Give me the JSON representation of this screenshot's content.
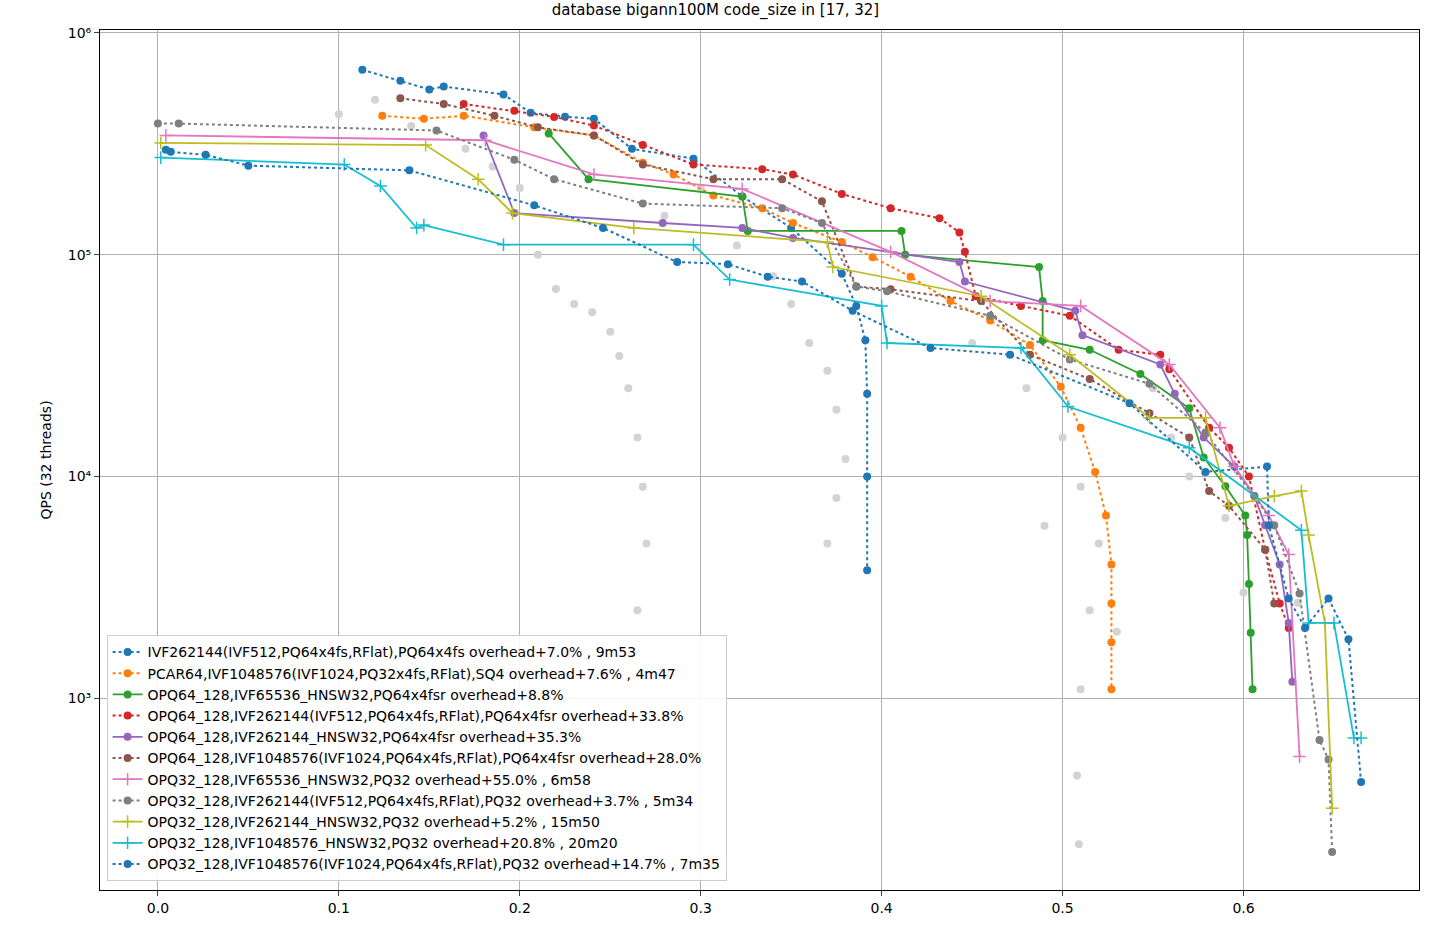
{
  "chart_data": {
    "type": "line",
    "title": "database bigann100M code_size in [17, 32]",
    "y_label": "QPS (32 threads)",
    "log": "y",
    "grid": true,
    "legend": "lower left",
    "xlim": [
      -0.032,
      0.697
    ],
    "ylim": [
      137,
      1030000
    ],
    "xticks": [
      {
        "value": 0,
        "label": "0.0"
      },
      0.1,
      0.2,
      0.3,
      0.4,
      0.5,
      0.6
    ],
    "yticks": [
      {
        "value": 1000,
        "label": "10³"
      },
      {
        "value": 10000,
        "label": "10⁴"
      },
      {
        "value": 100000,
        "label": "10⁵"
      },
      {
        "value": 1000000,
        "label": "10⁶"
      }
    ],
    "series": [
      {
        "color": "#d3d3d3",
        "marker": "circle",
        "line_style": "none",
        "x": [
          0.2,
          0.21,
          0.22,
          0.23,
          0.24,
          0.25,
          0.255,
          0.26,
          0.265,
          0.268,
          0.27,
          0.265,
          0.32,
          0.34,
          0.35,
          0.36,
          0.37,
          0.375,
          0.38,
          0.375,
          0.37,
          0.45,
          0.48,
          0.5,
          0.51,
          0.52,
          0.515,
          0.51,
          0.508,
          0.509,
          0.55,
          0.56,
          0.57,
          0.59,
          0.6,
          0.63,
          0.1,
          0.12,
          0.14,
          0.17,
          0.185,
          0.3,
          0.28,
          0.53,
          0.49
        ],
        "values": [
          200000,
          100000,
          70000,
          60000,
          55000,
          45000,
          35000,
          25000,
          15000,
          9000,
          5000,
          2500,
          110000,
          80000,
          60000,
          40000,
          30000,
          20000,
          12000,
          8000,
          5000,
          40000,
          25000,
          15000,
          9000,
          5000,
          2500,
          1100,
          450,
          220,
          25000,
          15000,
          10000,
          6500,
          3000,
          2700,
          430000,
          500000,
          380000,
          300000,
          250000,
          200000,
          150000,
          2000,
          6000
        ]
      },
      {
        "name": "IVF262144(IVF512,PQ64x4fs,RFlat),PQ64x4fs overhead+7.0% , 9m53",
        "color": "#1f77b4",
        "marker": "circle",
        "line_style": "dotted",
        "x": [
          0.113,
          0.134,
          0.15,
          0.158,
          0.191,
          0.206,
          0.225,
          0.241,
          0.262,
          0.296,
          0.323,
          0.35,
          0.378,
          0.386,
          0.391,
          0.392,
          0.392,
          0.392
        ],
        "values": [
          681000,
          609000,
          556000,
          573000,
          528000,
          436000,
          419000,
          410000,
          300000,
          271000,
          183000,
          132000,
          82000,
          58800,
          41200,
          23600,
          10000,
          3780
        ]
      },
      {
        "name": "PCAR64,IVF1048576(IVF1024,PQ32x4fs,RFlat),SQ4 overhead+7.6% , 4m47",
        "color": "#ff7f0e",
        "marker": "circle",
        "line_style": "dotted",
        "x": [
          0.124,
          0.147,
          0.169,
          0.208,
          0.241,
          0.268,
          0.285,
          0.307,
          0.334,
          0.351,
          0.378,
          0.395,
          0.416,
          0.438,
          0.46,
          0.482,
          0.499,
          0.51,
          0.518,
          0.524,
          0.527,
          0.527,
          0.527,
          0.527
        ],
        "values": [
          423000,
          410000,
          423000,
          375000,
          345000,
          260000,
          230000,
          185000,
          162000,
          139000,
          114000,
          97500,
          79600,
          61800,
          50500,
          39200,
          25400,
          16600,
          10500,
          6670,
          4020,
          2680,
          1790,
          1100
        ]
      },
      {
        "name": "OPQ64_128,IVF65536_HNSW32,PQ64x4fsr overhead+8.8%",
        "color": "#2ca02c",
        "marker": "circle",
        "line_style": "solid",
        "x": [
          0.216,
          0.238,
          0.323,
          0.326,
          0.411,
          0.413,
          0.487,
          0.489,
          0.489,
          0.515,
          0.543,
          0.57,
          0.578,
          0.59,
          0.601,
          0.602,
          0.603,
          0.604,
          0.605
        ],
        "values": [
          352000,
          219000,
          183000,
          128000,
          128000,
          100000,
          88000,
          61800,
          41200,
          37300,
          29000,
          20300,
          12200,
          9040,
          6670,
          5450,
          3280,
          1980,
          1100
        ]
      },
      {
        "name": "OPQ64_128,IVF262144(IVF512,PQ64x4fs,RFlat),PQ64x4fsr overhead+33.8%",
        "color": "#d62728",
        "marker": "circle",
        "line_style": "dotted",
        "x": [
          0.169,
          0.197,
          0.219,
          0.241,
          0.268,
          0.296,
          0.334,
          0.351,
          0.378,
          0.405,
          0.432,
          0.443,
          0.446,
          0.452,
          0.477,
          0.504,
          0.531,
          0.554,
          0.559,
          0.581,
          0.592,
          0.603,
          0.612,
          0.62,
          0.625
        ],
        "values": [
          478000,
          445000,
          418000,
          382000,
          312000,
          255000,
          243000,
          230000,
          188000,
          162000,
          146000,
          126000,
          103000,
          65000,
          58800,
          53100,
          37300,
          35400,
          30500,
          16600,
          13500,
          10000,
          4680,
          2680,
          2080
        ]
      },
      {
        "name": "OPQ64_128,IVF262144_HNSW32,PQ64x4fsr overhead+35.3%",
        "color": "#9467bd",
        "marker": "circle",
        "line_style": "solid",
        "x": [
          0.18,
          0.197,
          0.279,
          0.323,
          0.351,
          0.443,
          0.446,
          0.507,
          0.511,
          0.554,
          0.562,
          0.578,
          0.595,
          0.606,
          0.612,
          0.62,
          0.625,
          0.627
        ],
        "values": [
          345000,
          154000,
          139000,
          132000,
          119000,
          92700,
          75700,
          55900,
          43400,
          32000,
          23600,
          15000,
          11100,
          8170,
          6030,
          4020,
          2190,
          1190
        ]
      },
      {
        "name": "OPQ64_128,IVF1048576(IVF1024,PQ64x4fs,RFlat),PQ64x4fsr overhead+28.0%",
        "color": "#8c564b",
        "marker": "circle",
        "line_style": "dotted",
        "x": [
          0.134,
          0.158,
          0.186,
          0.21,
          0.241,
          0.268,
          0.307,
          0.345,
          0.367,
          0.386,
          0.405,
          0.455,
          0.482,
          0.515,
          0.548,
          0.57,
          0.581,
          0.592,
          0.612,
          0.617
        ],
        "values": [
          507000,
          478000,
          423000,
          375000,
          345000,
          255000,
          219000,
          219000,
          174000,
          71900,
          69800,
          61800,
          35400,
          27500,
          19300,
          15000,
          8600,
          7380,
          4680,
          2680
        ]
      },
      {
        "name": "OPQ32_128,IVF65536_HNSW32,PQ32 overhead+55.0% , 6m58",
        "color": "#e377c2",
        "marker": "plus",
        "line_style": "solid",
        "x": [
          0.0044,
          0.181,
          0.241,
          0.323,
          0.405,
          0.46,
          0.51,
          0.559,
          0.587,
          0.595,
          0.614,
          0.625,
          0.631
        ],
        "values": [
          345000,
          328000,
          230000,
          198000,
          103000,
          61800,
          58800,
          32000,
          16600,
          11100,
          6670,
          4450,
          547
        ]
      },
      {
        "name": "OPQ32_128,IVF262144(IVF512,PQ64x4fs,RFlat),PQ32 overhead+3.7% , 5m34",
        "color": "#7f7f7f",
        "marker": "circle",
        "line_style": "dotted",
        "x": [
          0.0,
          0.0115,
          0.154,
          0.197,
          0.219,
          0.268,
          0.345,
          0.367,
          0.386,
          0.403,
          0.46,
          0.504,
          0.548,
          0.579,
          0.606,
          0.617,
          0.631,
          0.642,
          0.647,
          0.649
        ],
        "values": [
          390000,
          390000,
          363000,
          268000,
          219000,
          170000,
          162000,
          139000,
          71900,
          68400,
          53100,
          33700,
          26200,
          15800,
          8170,
          6030,
          2970,
          650,
          531,
          203
        ]
      },
      {
        "name": "OPQ32_128,IVF262144_HNSW32,PQ32 overhead+5.2% , 15m50",
        "color": "#bcbd22",
        "marker": "plus",
        "line_style": "solid",
        "x": [
          0.0016,
          0.148,
          0.177,
          0.196,
          0.263,
          0.37,
          0.373,
          0.455,
          0.504,
          0.548,
          0.579,
          0.592,
          0.617,
          0.632,
          0.636,
          0.645,
          0.649
        ],
        "values": [
          319000,
          312000,
          219000,
          154000,
          132000,
          114000,
          88000,
          65000,
          35400,
          18400,
          18400,
          7380,
          8170,
          8600,
          5450,
          2190,
          320
        ]
      },
      {
        "name": "OPQ32_128,IVF1048576_HNSW32,PQ32 overhead+20.8% , 20m20",
        "color": "#17becf",
        "marker": "plus",
        "line_style": "solid",
        "x": [
          0.0016,
          0.103,
          0.123,
          0.143,
          0.147,
          0.191,
          0.296,
          0.316,
          0.4,
          0.403,
          0.477,
          0.503,
          0.57,
          0.632,
          0.636,
          0.65,
          0.661,
          0.665
        ],
        "values": [
          274000,
          255000,
          204000,
          132000,
          136000,
          111000,
          111000,
          77300,
          58800,
          40000,
          38000,
          20700,
          13500,
          5730,
          2190,
          2190,
          664,
          664
        ]
      },
      {
        "name": "OPQ32_128,IVF1048576(IVF1024,PQ64x4fs,RFlat),PQ32 overhead+14.7% , 7m35",
        "color": "#1f77b4",
        "marker": "circle",
        "line_style": "dotted",
        "x": [
          0.0044,
          0.0071,
          0.0264,
          0.05,
          0.139,
          0.208,
          0.246,
          0.287,
          0.315,
          0.337,
          0.356,
          0.384,
          0.427,
          0.471,
          0.537,
          0.579,
          0.613,
          0.614,
          0.625,
          0.634,
          0.647,
          0.658,
          0.665
        ],
        "values": [
          297000,
          291000,
          282000,
          252000,
          240000,
          167000,
          132000,
          92700,
          90700,
          79600,
          75700,
          55900,
          38000,
          35400,
          21400,
          10500,
          11100,
          6030,
          2820,
          2080,
          2820,
          1850,
          420
        ]
      }
    ]
  }
}
